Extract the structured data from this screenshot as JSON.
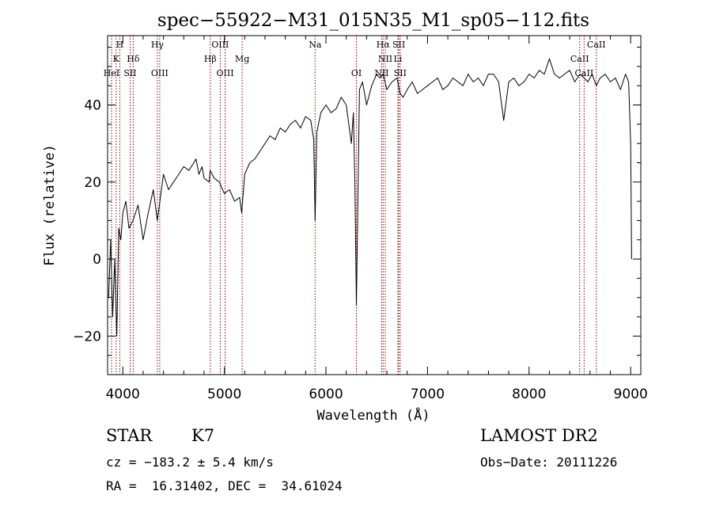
{
  "chart_data": {
    "type": "line",
    "title": "spec−55922−M31_015N35_M1_sp05−112.fits",
    "xlabel": "Wavelength (Å)",
    "ylabel": "Flux (relative)",
    "xlim": [
      3850,
      9100
    ],
    "ylim": [
      -30,
      58
    ],
    "xticks": [
      4000,
      5000,
      6000,
      7000,
      8000,
      9000
    ],
    "yticks": [
      -20,
      0,
      20,
      40
    ],
    "xtick_labels": [
      "4000",
      "5000",
      "6000",
      "7000",
      "8000",
      "9000"
    ],
    "ytick_labels": [
      "−20",
      "0",
      "20",
      "40"
    ],
    "grid": false,
    "series": [
      {
        "color": "#000000",
        "x": [
          3860,
          3880,
          3900,
          3920,
          3940,
          3960,
          3980,
          4000,
          4030,
          4060,
          4100,
          4150,
          4200,
          4250,
          4300,
          4340,
          4400,
          4450,
          4500,
          4550,
          4600,
          4650,
          4700,
          4720,
          4750,
          4780,
          4800,
          4850,
          4860,
          4900,
          4950,
          5000,
          5050,
          5100,
          5150,
          5170,
          5200,
          5250,
          5300,
          5350,
          5400,
          5450,
          5500,
          5550,
          5600,
          5650,
          5700,
          5750,
          5800,
          5850,
          5880,
          5893,
          5910,
          5950,
          6000,
          6050,
          6100,
          6150,
          6200,
          6250,
          6270,
          6285,
          6300,
          6330,
          6360,
          6400,
          6450,
          6500,
          6530,
          6563,
          6600,
          6650,
          6700,
          6730,
          6760,
          6800,
          6850,
          6900,
          6950,
          7000,
          7050,
          7100,
          7150,
          7200,
          7250,
          7300,
          7350,
          7400,
          7450,
          7500,
          7550,
          7600,
          7650,
          7700,
          7750,
          7800,
          7850,
          7900,
          7950,
          8000,
          8050,
          8100,
          8150,
          8200,
          8250,
          8300,
          8350,
          8400,
          8450,
          8500,
          8542,
          8580,
          8620,
          8662,
          8700,
          8750,
          8800,
          8850,
          8900,
          8950,
          8980,
          9000,
          9010
        ],
        "y": [
          -10,
          5,
          -15,
          0,
          -20,
          8,
          5,
          12,
          15,
          8,
          10,
          14,
          5,
          12,
          18,
          10,
          22,
          18,
          20,
          22,
          24,
          23,
          25,
          26,
          22,
          24,
          21,
          20,
          23,
          21,
          20,
          17,
          18,
          15,
          16,
          12,
          22,
          25,
          26,
          28,
          30,
          32,
          31,
          34,
          33,
          35,
          36,
          34,
          37,
          36,
          31,
          10,
          33,
          38,
          40,
          38,
          39,
          42,
          40,
          30,
          38,
          20,
          -12,
          44,
          46,
          40,
          45,
          48,
          47,
          48,
          44,
          46,
          47,
          43,
          42,
          44,
          46,
          43,
          44,
          45,
          46,
          47,
          44,
          45,
          47,
          46,
          45,
          48,
          46,
          47,
          45,
          48,
          48,
          46,
          36,
          46,
          47,
          45,
          46,
          48,
          47,
          49,
          48,
          52,
          48,
          47,
          48,
          49,
          46,
          48,
          47,
          46,
          48,
          45,
          47,
          48,
          46,
          47,
          44,
          48,
          46,
          30,
          0
        ]
      }
    ],
    "lines": [
      {
        "label": "H",
        "x": 3970,
        "row": 0
      },
      {
        "label": "K",
        "x": 3934,
        "row": 1
      },
      {
        "label": "HeI",
        "x": 3889,
        "row": 2
      },
      {
        "label": "SII",
        "x": 4072,
        "row": 2
      },
      {
        "label": "Hδ",
        "x": 4102,
        "row": 1
      },
      {
        "label": "Hγ",
        "x": 4340,
        "row": 0
      },
      {
        "label": "OIII",
        "x": 4363,
        "row": 2
      },
      {
        "label": "OIII",
        "x": 4959,
        "row": 0
      },
      {
        "label": "Hβ",
        "x": 4861,
        "row": 1
      },
      {
        "label": "OIII",
        "x": 5007,
        "row": 2
      },
      {
        "label": "Mg",
        "x": 5175,
        "row": 1
      },
      {
        "label": "Na",
        "x": 5893,
        "row": 0
      },
      {
        "label": "OI",
        "x": 6300,
        "row": 2
      },
      {
        "label": "Hα",
        "x": 6563,
        "row": 0
      },
      {
        "label": "SII",
        "x": 6717,
        "row": 0
      },
      {
        "label": "NII",
        "x": 6584,
        "row": 1
      },
      {
        "label": "Li",
        "x": 6708,
        "row": 1
      },
      {
        "label": "NII",
        "x": 6548,
        "row": 2
      },
      {
        "label": "SII",
        "x": 6731,
        "row": 2
      },
      {
        "label": "CaII",
        "x": 8662,
        "row": 0
      },
      {
        "label": "CaII",
        "x": 8498,
        "row": 1
      },
      {
        "label": "CaII",
        "x": 8542,
        "row": 2
      }
    ]
  },
  "info": {
    "class_label": "STAR",
    "subclass": "K7",
    "survey": "LAMOST DR2",
    "cz": "cz = −183.2 ± 5.4 km/s",
    "obs_date": "Obs−Date: 20111226",
    "radec": "RA =  16.31402, DEC =  34.61024"
  }
}
